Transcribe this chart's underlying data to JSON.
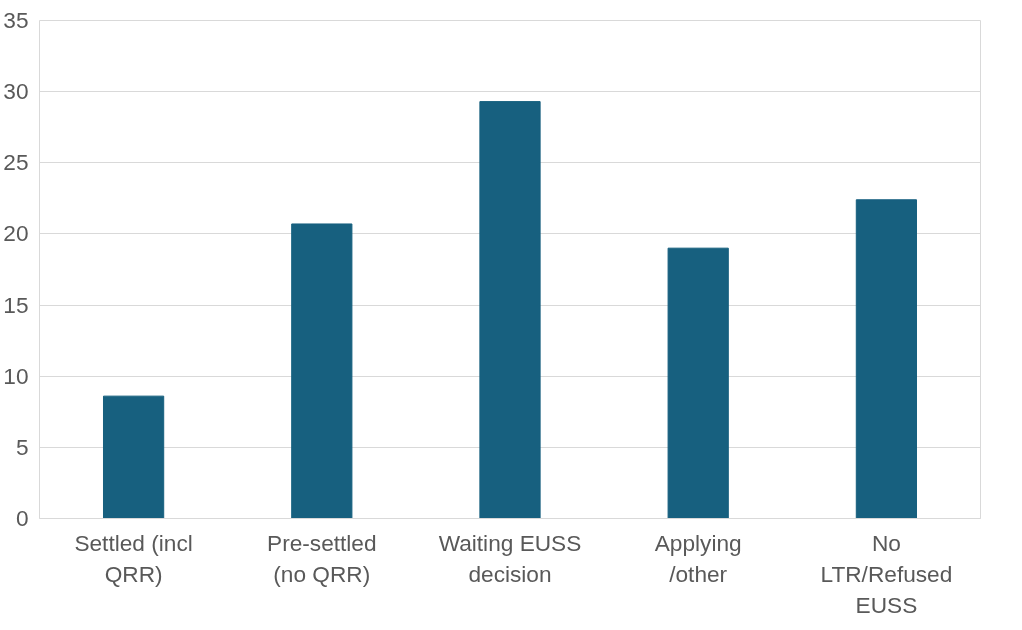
{
  "chart_data": {
    "type": "bar",
    "categories": [
      "Settled (incl QRR)",
      "Pre-settled (no QRR)",
      "Waiting EUSS decision",
      "Applying /other",
      "No LTR/Refused EUSS"
    ],
    "values": [
      8.6,
      20.7,
      29.3,
      19.0,
      22.4
    ],
    "color": "#17607f",
    "ylim": [
      0,
      35
    ],
    "yticks": [
      0,
      5,
      10,
      15,
      20,
      25,
      30,
      35
    ],
    "grid": "y"
  }
}
